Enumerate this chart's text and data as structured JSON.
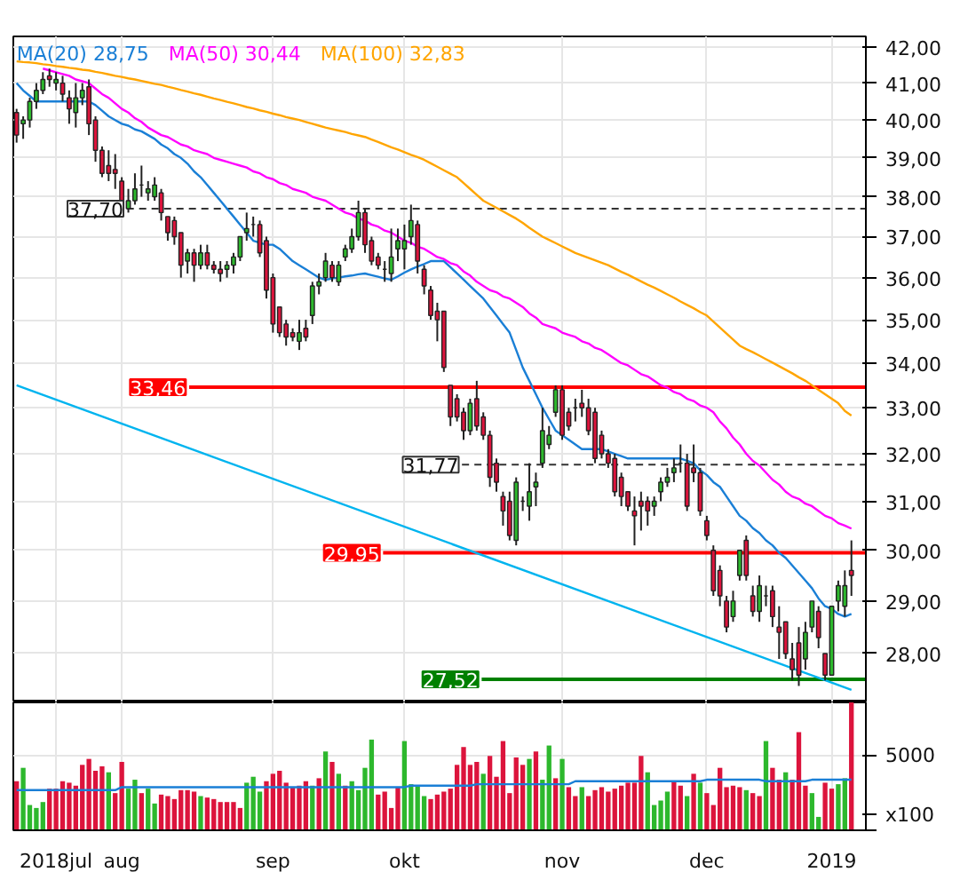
{
  "chart_data": [
    {
      "type": "candlestick",
      "log": true,
      "grid": true,
      "legend": "top left",
      "tick_labels": "y",
      "categories": [
        null,
        null,
        null,
        null,
        null,
        null,
        null,
        null,
        null,
        null,
        null,
        null,
        null,
        null,
        null,
        null,
        null,
        null,
        null,
        null,
        null,
        null,
        null,
        null,
        null,
        null,
        null,
        null,
        null,
        null,
        null,
        null,
        null,
        null,
        null,
        null,
        null,
        null,
        null,
        null,
        null,
        null,
        null,
        null,
        null,
        null,
        null,
        null,
        null,
        null,
        null,
        null,
        null,
        null,
        null,
        null,
        null,
        null,
        null,
        null,
        null,
        null,
        null,
        null,
        null,
        null,
        null,
        null,
        null,
        null,
        null,
        null,
        null,
        null,
        null,
        null,
        null,
        null,
        null,
        null,
        null,
        null,
        null,
        null,
        null,
        null,
        null,
        null,
        null,
        null,
        null,
        null,
        null,
        null,
        null,
        null,
        null,
        null,
        null,
        null,
        null,
        null,
        null,
        null,
        null,
        null,
        null,
        null,
        null,
        null,
        null,
        null,
        null,
        null,
        null,
        null,
        null,
        null,
        null,
        null,
        null,
        null,
        null,
        null,
        null,
        null,
        null,
        null
      ],
      "ohlc": [
        [
          40.2,
          40.3,
          39.4,
          39.6
        ],
        [
          39.9,
          40.1,
          39.5,
          40.0
        ],
        [
          40.0,
          40.6,
          39.8,
          40.5
        ],
        [
          40.5,
          41.0,
          40.3,
          40.8
        ],
        [
          40.8,
          41.3,
          40.7,
          41.1
        ],
        [
          41.2,
          41.4,
          40.9,
          41.1
        ],
        [
          41.0,
          41.3,
          40.8,
          41.1
        ],
        [
          41.0,
          41.2,
          40.5,
          40.7
        ],
        [
          40.6,
          40.8,
          39.9,
          40.3
        ],
        [
          40.2,
          41.0,
          39.8,
          40.6
        ],
        [
          40.6,
          41.0,
          40.4,
          40.8
        ],
        [
          40.9,
          41.1,
          39.6,
          39.9
        ],
        [
          40.0,
          40.1,
          38.9,
          39.2
        ],
        [
          39.2,
          39.3,
          38.5,
          38.6
        ],
        [
          38.8,
          39.2,
          38.4,
          38.6
        ],
        [
          38.7,
          39.1,
          38.2,
          38.6
        ],
        [
          38.4,
          38.5,
          37.5,
          37.7
        ],
        [
          37.7,
          38.2,
          37.6,
          37.9
        ],
        [
          37.9,
          38.6,
          37.8,
          38.2
        ],
        [
          38.3,
          38.8,
          38.0,
          38.3
        ],
        [
          38.1,
          38.4,
          37.9,
          38.2
        ],
        [
          38.0,
          38.5,
          37.9,
          38.3
        ],
        [
          38.1,
          38.2,
          37.4,
          37.6
        ],
        [
          37.5,
          37.5,
          36.9,
          37.1
        ],
        [
          37.4,
          37.5,
          36.8,
          37.0
        ],
        [
          37.1,
          37.1,
          36.0,
          36.3
        ],
        [
          36.4,
          36.7,
          36.1,
          36.6
        ],
        [
          36.6,
          36.7,
          35.9,
          36.3
        ],
        [
          36.3,
          36.8,
          36.2,
          36.6
        ],
        [
          36.6,
          36.8,
          36.2,
          36.3
        ],
        [
          36.3,
          36.4,
          36.1,
          36.2
        ],
        [
          36.2,
          36.4,
          35.9,
          36.1
        ],
        [
          36.2,
          36.4,
          36.0,
          36.3
        ],
        [
          36.3,
          36.6,
          36.1,
          36.5
        ],
        [
          36.5,
          37.0,
          36.4,
          37.0
        ],
        [
          37.1,
          37.6,
          36.9,
          37.2
        ],
        [
          37.3,
          37.5,
          37.0,
          37.3
        ],
        [
          37.3,
          37.4,
          36.5,
          36.6
        ],
        [
          36.9,
          37.0,
          35.5,
          35.7
        ],
        [
          36.0,
          36.1,
          34.7,
          34.9
        ],
        [
          35.3,
          35.3,
          34.6,
          34.7
        ],
        [
          34.9,
          35.0,
          34.4,
          34.6
        ],
        [
          34.7,
          34.8,
          34.5,
          34.6
        ],
        [
          34.5,
          35.0,
          34.3,
          34.7
        ],
        [
          34.8,
          35.0,
          34.5,
          34.6
        ],
        [
          35.1,
          35.9,
          34.9,
          35.8
        ],
        [
          35.8,
          36.1,
          35.6,
          35.9
        ],
        [
          36.0,
          36.6,
          35.9,
          36.4
        ],
        [
          36.3,
          36.4,
          35.9,
          36.0
        ],
        [
          35.9,
          36.4,
          35.8,
          36.3
        ],
        [
          36.5,
          36.8,
          36.4,
          36.7
        ],
        [
          36.7,
          37.2,
          36.6,
          37.0
        ],
        [
          37.0,
          37.9,
          36.9,
          37.6
        ],
        [
          37.6,
          37.7,
          36.6,
          36.8
        ],
        [
          36.9,
          37.0,
          36.3,
          36.4
        ],
        [
          36.5,
          36.6,
          36.2,
          36.3
        ],
        [
          36.2,
          36.4,
          35.9,
          36.2
        ],
        [
          36.1,
          37.2,
          35.9,
          36.5
        ],
        [
          36.7,
          37.2,
          36.4,
          36.9
        ],
        [
          36.7,
          37.3,
          36.2,
          36.9
        ],
        [
          37.0,
          37.8,
          36.8,
          37.4
        ],
        [
          37.3,
          37.4,
          36.1,
          36.4
        ],
        [
          36.2,
          36.3,
          35.6,
          35.8
        ],
        [
          35.7,
          35.8,
          35.0,
          35.1
        ],
        [
          35.2,
          35.4,
          34.5,
          35.0
        ],
        [
          35.2,
          35.2,
          33.8,
          33.9
        ],
        [
          33.5,
          33.5,
          32.6,
          32.8
        ],
        [
          33.2,
          33.3,
          32.7,
          32.8
        ],
        [
          32.9,
          33.0,
          32.3,
          32.5
        ],
        [
          32.5,
          33.2,
          32.4,
          33.1
        ],
        [
          33.2,
          33.6,
          32.5,
          32.6
        ],
        [
          32.8,
          32.9,
          32.3,
          32.4
        ],
        [
          32.4,
          32.5,
          31.3,
          31.5
        ],
        [
          31.8,
          31.9,
          31.2,
          31.4
        ],
        [
          31.1,
          31.2,
          30.5,
          30.8
        ],
        [
          31.0,
          31.2,
          30.2,
          30.3
        ],
        [
          30.2,
          31.5,
          30.1,
          31.4
        ],
        [
          31.0,
          31.1,
          30.8,
          31.0
        ],
        [
          30.9,
          31.8,
          30.6,
          31.2
        ],
        [
          31.3,
          31.6,
          30.9,
          31.4
        ],
        [
          31.8,
          33.0,
          31.7,
          32.5
        ],
        [
          32.2,
          32.6,
          32.1,
          32.4
        ],
        [
          32.9,
          33.5,
          32.8,
          33.4
        ],
        [
          33.4,
          33.5,
          32.3,
          32.4
        ],
        [
          32.9,
          33.0,
          32.5,
          32.6
        ],
        [
          33.0,
          33.2,
          32.7,
          33.0
        ],
        [
          33.1,
          33.4,
          32.8,
          33.0
        ],
        [
          33.0,
          33.2,
          32.4,
          32.5
        ],
        [
          32.9,
          33.0,
          31.8,
          31.9
        ],
        [
          32.4,
          32.5,
          31.9,
          32.0
        ],
        [
          32.0,
          32.1,
          31.7,
          31.8
        ],
        [
          31.9,
          32.0,
          31.1,
          31.2
        ],
        [
          31.5,
          31.6,
          30.9,
          31.1
        ],
        [
          31.2,
          31.2,
          30.8,
          30.9
        ],
        [
          30.8,
          31.1,
          30.1,
          30.7
        ],
        [
          31.0,
          31.2,
          30.4,
          30.9
        ],
        [
          31.0,
          31.1,
          30.5,
          30.8
        ],
        [
          30.9,
          31.1,
          30.7,
          31.0
        ],
        [
          31.2,
          31.5,
          31.0,
          31.4
        ],
        [
          31.4,
          31.7,
          31.3,
          31.5
        ],
        [
          31.6,
          31.9,
          31.4,
          31.7
        ],
        [
          31.8,
          32.2,
          31.6,
          31.8
        ],
        [
          31.8,
          32.0,
          30.8,
          30.9
        ],
        [
          31.7,
          32.2,
          31.4,
          31.6
        ],
        [
          31.6,
          31.7,
          30.7,
          30.8
        ],
        [
          30.6,
          30.7,
          30.2,
          30.3
        ],
        [
          30.0,
          30.1,
          29.1,
          29.2
        ],
        [
          29.6,
          29.7,
          28.9,
          29.1
        ],
        [
          29.0,
          29.1,
          28.4,
          28.5
        ],
        [
          28.7,
          29.2,
          28.6,
          29.0
        ],
        [
          29.5,
          30.0,
          29.4,
          30.0
        ],
        [
          30.2,
          30.3,
          29.4,
          29.5
        ],
        [
          29.1,
          29.3,
          28.7,
          28.8
        ],
        [
          28.8,
          29.5,
          28.6,
          29.3
        ],
        [
          29.1,
          29.3,
          28.9,
          29.1
        ],
        [
          29.2,
          29.3,
          28.5,
          28.7
        ],
        [
          28.5,
          28.9,
          27.9,
          28.4
        ],
        [
          28.6,
          28.6,
          27.9,
          28.0
        ],
        [
          27.9,
          28.2,
          27.5,
          27.7
        ],
        [
          28.2,
          28.5,
          27.4,
          27.6
        ],
        [
          27.9,
          28.6,
          27.7,
          28.4
        ],
        [
          28.5,
          29.0,
          28.4,
          29.0
        ],
        [
          28.8,
          28.9,
          28.1,
          28.3
        ],
        [
          28.0,
          28.0,
          27.5,
          27.6
        ],
        [
          27.6,
          28.9,
          27.6,
          28.9
        ],
        [
          29.0,
          29.4,
          28.8,
          29.3
        ],
        [
          28.9,
          29.6,
          28.7,
          29.3
        ],
        [
          29.6,
          30.2,
          29.1,
          29.5
        ]
      ],
      "series": [
        {
          "type": "line",
          "name": "MA(20) 28,75",
          "color": "#1a7fd6",
          "values": [
            41.0,
            40.8,
            40.65,
            40.5,
            40.5,
            40.5,
            40.5,
            40.5,
            40.5,
            40.5,
            40.5,
            40.5,
            40.4,
            40.25,
            40.1,
            40.0,
            39.9,
            39.85,
            39.75,
            39.7,
            39.6,
            39.5,
            39.35,
            39.25,
            39.1,
            39.0,
            38.85,
            38.65,
            38.5,
            38.3,
            38.1,
            37.9,
            37.7,
            37.5,
            37.3,
            37.1,
            36.9,
            36.85,
            36.8,
            36.8,
            36.7,
            36.55,
            36.4,
            36.3,
            36.2,
            36.1,
            36.0,
            35.95,
            35.98,
            36.0,
            36.03,
            36.05,
            36.08,
            36.1,
            36.06,
            36.02,
            35.98,
            35.95,
            36.03,
            36.12,
            36.2,
            36.27,
            36.33,
            36.4,
            36.4,
            36.4,
            36.25,
            36.1,
            35.95,
            35.8,
            35.65,
            35.5,
            35.3,
            35.1,
            34.9,
            34.7,
            34.3,
            33.9,
            33.6,
            33.3,
            33.0,
            32.75,
            32.5,
            32.4,
            32.3,
            32.2,
            32.1,
            32.1,
            32.1,
            32.1,
            32.05,
            32.0,
            31.95,
            31.9,
            31.9,
            31.9,
            31.9,
            31.9,
            31.9,
            31.9,
            31.9,
            31.9,
            31.85,
            31.8,
            31.65,
            31.55,
            31.4,
            31.3,
            31.1,
            30.9,
            30.7,
            30.6,
            30.45,
            30.35,
            30.2,
            30.1,
            29.95,
            29.85,
            29.7,
            29.55,
            29.4,
            29.25,
            29.05,
            28.9,
            28.85,
            28.75,
            28.7,
            28.75
          ]
        },
        {
          "type": "line",
          "name": "MA(50) 30,44",
          "color": "#ff00ff",
          "values": [
            null,
            null,
            null,
            null,
            41.4,
            41.35,
            41.3,
            41.25,
            41.2,
            41.1,
            41.05,
            41.0,
            40.85,
            40.7,
            40.6,
            40.45,
            40.3,
            40.2,
            40.05,
            39.95,
            39.8,
            39.7,
            39.6,
            39.55,
            39.45,
            39.35,
            39.3,
            39.2,
            39.15,
            39.1,
            39.0,
            38.95,
            38.9,
            38.85,
            38.8,
            38.75,
            38.65,
            38.6,
            38.5,
            38.45,
            38.35,
            38.3,
            38.2,
            38.15,
            38.1,
            38.0,
            37.95,
            37.9,
            37.8,
            37.7,
            37.6,
            37.55,
            37.45,
            37.4,
            37.3,
            37.25,
            37.15,
            37.1,
            37.0,
            36.9,
            36.85,
            36.75,
            36.7,
            36.6,
            36.5,
            36.45,
            36.35,
            36.3,
            36.15,
            36.05,
            35.9,
            35.8,
            35.7,
            35.65,
            35.55,
            35.5,
            35.4,
            35.3,
            35.15,
            35.05,
            34.9,
            34.85,
            34.8,
            34.7,
            34.65,
            34.6,
            34.5,
            34.45,
            34.35,
            34.3,
            34.2,
            34.1,
            34.0,
            33.95,
            33.85,
            33.75,
            33.7,
            33.6,
            33.5,
            33.45,
            33.35,
            33.3,
            33.2,
            33.15,
            33.05,
            33.0,
            32.9,
            32.7,
            32.55,
            32.35,
            32.2,
            32.0,
            31.85,
            31.75,
            31.6,
            31.45,
            31.35,
            31.2,
            31.1,
            31.05,
            30.95,
            30.9,
            30.8,
            30.7,
            30.65,
            30.55,
            30.5,
            30.44
          ]
        },
        {
          "type": "line",
          "name": "MA(100) 32,83",
          "color": "#ffa500",
          "values": [
            41.6,
            41.58,
            41.57,
            41.55,
            41.52,
            41.5,
            41.47,
            41.45,
            41.42,
            41.4,
            41.37,
            41.35,
            41.31,
            41.28,
            41.24,
            41.2,
            41.17,
            41.13,
            41.1,
            41.06,
            41.02,
            40.98,
            40.95,
            40.9,
            40.86,
            40.81,
            40.77,
            40.72,
            40.68,
            40.63,
            40.58,
            40.54,
            40.49,
            40.45,
            40.4,
            40.35,
            40.31,
            40.26,
            40.22,
            40.17,
            40.13,
            40.08,
            40.04,
            40.0,
            39.95,
            39.9,
            39.85,
            39.8,
            39.76,
            39.72,
            39.68,
            39.63,
            39.59,
            39.55,
            39.48,
            39.42,
            39.35,
            39.28,
            39.22,
            39.15,
            39.08,
            39.02,
            38.95,
            38.86,
            38.77,
            38.68,
            38.59,
            38.5,
            38.35,
            38.2,
            38.05,
            37.9,
            37.81,
            37.72,
            37.63,
            37.54,
            37.45,
            37.34,
            37.22,
            37.11,
            37.0,
            36.92,
            36.84,
            36.76,
            36.68,
            36.6,
            36.54,
            36.48,
            36.42,
            36.36,
            36.3,
            36.22,
            36.14,
            36.07,
            35.99,
            35.91,
            35.83,
            35.76,
            35.68,
            35.6,
            35.52,
            35.43,
            35.35,
            35.27,
            35.18,
            35.1,
            34.96,
            34.82,
            34.68,
            34.54,
            34.4,
            34.32,
            34.25,
            34.17,
            34.09,
            34.01,
            33.93,
            33.85,
            33.77,
            33.68,
            33.6,
            33.5,
            33.4,
            33.3,
            33.2,
            33.1,
            32.93,
            32.83
          ]
        },
        {
          "type": "line",
          "color": "#00b4ef",
          "values": [
            33.5,
            null,
            null,
            null,
            null,
            null,
            null,
            null,
            null,
            null,
            null,
            null,
            null,
            null,
            null,
            null,
            null,
            null,
            null,
            null,
            null,
            null,
            null,
            null,
            null,
            null,
            null,
            null,
            null,
            null,
            null,
            null,
            null,
            null,
            null,
            null,
            null,
            null,
            null,
            null,
            null,
            null,
            null,
            null,
            null,
            null,
            null,
            null,
            null,
            null,
            null,
            null,
            null,
            null,
            null,
            null,
            null,
            null,
            null,
            null,
            null,
            null,
            null,
            null,
            null,
            null,
            null,
            null,
            null,
            null,
            null,
            null,
            null,
            null,
            null,
            null,
            null,
            null,
            null,
            null,
            null,
            null,
            null,
            null,
            null,
            null,
            null,
            null,
            null,
            null,
            null,
            null,
            null,
            null,
            null,
            null,
            null,
            null,
            null,
            null,
            null,
            null,
            null,
            null,
            null,
            null,
            null,
            null,
            null,
            null,
            null,
            null,
            null,
            null,
            null,
            null,
            null,
            null,
            null,
            null,
            null,
            null,
            null,
            null,
            null,
            null,
            null,
            27.33
          ]
        }
      ],
      "ref_lines": [
        {
          "axis": "y",
          "value": 37.7,
          "label": "37,70",
          "color": "#333333",
          "line_style": "dashed"
        },
        {
          "axis": "y",
          "value": 33.46,
          "label": "33,46",
          "color": "#ff0000",
          "line_style": "solid"
        },
        {
          "axis": "y",
          "value": 31.77,
          "label": "31,77",
          "color": "#333333",
          "line_style": "dashed"
        },
        {
          "axis": "y",
          "value": 29.95,
          "label": "29,95",
          "color": "#ff0000",
          "line_style": "solid"
        },
        {
          "axis": "y",
          "value": 27.52,
          "label": "27,52",
          "color": "#008000",
          "line_style": "solid"
        }
      ],
      "ylim": [
        27.1,
        42.3
      ],
      "yticks": [
        {
          "value": 28,
          "label": "28,00"
        },
        {
          "value": 29,
          "label": "29,00"
        },
        {
          "value": 30,
          "label": "30,00"
        },
        {
          "value": 31,
          "label": "31,00"
        },
        {
          "value": 32,
          "label": "32,00"
        },
        {
          "value": 33,
          "label": "33,00"
        },
        {
          "value": 34,
          "label": "34,00"
        },
        {
          "value": 35,
          "label": "35,00"
        },
        {
          "value": 36,
          "label": "36,00"
        },
        {
          "value": 37,
          "label": "37,00"
        },
        {
          "value": 38,
          "label": "38,00"
        },
        {
          "value": 39,
          "label": "39,00"
        },
        {
          "value": 40,
          "label": "40,00"
        },
        {
          "value": 41,
          "label": "41,00"
        },
        {
          "value": 42,
          "label": "42,00"
        }
      ]
    },
    {
      "type": "bar",
      "grid": true,
      "categories": [
        null,
        null,
        null,
        null,
        null,
        null,
        "2018jul",
        null,
        null,
        null,
        null,
        null,
        null,
        null,
        null,
        null,
        "aug",
        null,
        null,
        null,
        null,
        null,
        null,
        null,
        null,
        null,
        null,
        null,
        null,
        null,
        null,
        null,
        null,
        null,
        null,
        null,
        null,
        null,
        null,
        "sep",
        null,
        null,
        null,
        null,
        null,
        null,
        null,
        null,
        null,
        null,
        null,
        null,
        null,
        null,
        null,
        null,
        null,
        null,
        null,
        "okt",
        null,
        null,
        null,
        null,
        null,
        null,
        null,
        null,
        null,
        null,
        null,
        null,
        null,
        null,
        null,
        null,
        null,
        null,
        null,
        null,
        null,
        null,
        null,
        "nov",
        null,
        null,
        null,
        null,
        null,
        null,
        null,
        null,
        null,
        null,
        null,
        null,
        null,
        null,
        null,
        null,
        null,
        null,
        null,
        null,
        null,
        "dec",
        null,
        null,
        null,
        null,
        null,
        null,
        null,
        null,
        null,
        null,
        null,
        null,
        null,
        null,
        null,
        null,
        null,
        null,
        "2019",
        null,
        null,
        null
      ],
      "series": [
        {
          "type": "bar",
          "values": [
            3300,
            4200,
            1700,
            1500,
            1900,
            2800,
            2800,
            3300,
            3200,
            3000,
            4400,
            4800,
            4000,
            4300,
            3900,
            2500,
            4600,
            2800,
            3400,
            2500,
            2800,
            1800,
            2400,
            2300,
            2100,
            2700,
            2700,
            2600,
            2300,
            2200,
            2100,
            1900,
            1900,
            1900,
            1500,
            3200,
            3600,
            2600,
            3300,
            3800,
            4000,
            3200,
            2900,
            3000,
            3300,
            3000,
            3500,
            5300,
            4600,
            3800,
            3000,
            3300,
            2700,
            4200,
            6100,
            2400,
            2600,
            1500,
            2900,
            6000,
            3100,
            3000,
            2300,
            2100,
            2400,
            2600,
            2800,
            4400,
            5600,
            4400,
            4600,
            3800,
            5000,
            3600,
            6000,
            2500,
            4900,
            4400,
            4800,
            5300,
            3400,
            5700,
            3500,
            4800,
            2900,
            2300,
            2900,
            2300,
            2700,
            2900,
            2600,
            2800,
            3000,
            3200,
            3200,
            5000,
            3900,
            1700,
            2000,
            2600,
            3300,
            3000,
            2300,
            3800,
            3200,
            2500,
            1700,
            4200,
            2900,
            3000,
            2900,
            2700,
            2500,
            2300,
            6000,
            4200,
            3400,
            3900,
            3400,
            6600,
            3000,
            2500,
            900,
            3200,
            2800,
            3100,
            3500,
            8600
          ],
          "colors": [
            "#dc143c",
            "#2db82d",
            "#2db82d",
            "#2db82d",
            "#2db82d",
            "#dc143c",
            "#dc143c",
            "#dc143c",
            "#dc143c",
            "#dc143c",
            "#dc143c",
            "#dc143c",
            "#dc143c",
            "#dc143c",
            "#2db82d",
            "#dc143c",
            "#dc143c",
            "#2db82d",
            "#2db82d",
            "#dc143c",
            "#2db82d",
            "#2db82d",
            "#dc143c",
            "#dc143c",
            "#dc143c",
            "#dc143c",
            "#dc143c",
            "#dc143c",
            "#2db82d",
            "#dc143c",
            "#dc143c",
            "#dc143c",
            "#dc143c",
            "#dc143c",
            "#dc143c",
            "#2db82d",
            "#2db82d",
            "#2db82d",
            "#dc143c",
            "#dc143c",
            "#dc143c",
            "#dc143c",
            "#dc143c",
            "#dc143c",
            "#dc143c",
            "#2db82d",
            "#dc143c",
            "#2db82d",
            "#dc143c",
            "#2db82d",
            "#dc143c",
            "#2db82d",
            "#2db82d",
            "#2db82d",
            "#2db82d",
            "#dc143c",
            "#dc143c",
            "#dc143c",
            "#dc143c",
            "#2db82d",
            "#2db82d",
            "#2db82d",
            "#2db82d",
            "#dc143c",
            "#dc143c",
            "#dc143c",
            "#dc143c",
            "#dc143c",
            "#dc143c",
            "#dc143c",
            "#dc143c",
            "#2db82d",
            "#dc143c",
            "#dc143c",
            "#dc143c",
            "#dc143c",
            "#dc143c",
            "#dc143c",
            "#2db82d",
            "#dc143c",
            "#2db82d",
            "#2db82d",
            "#dc143c",
            "#2db82d",
            "#dc143c",
            "#dc143c",
            "#2db82d",
            "#dc143c",
            "#dc143c",
            "#dc143c",
            "#dc143c",
            "#dc143c",
            "#dc143c",
            "#dc143c",
            "#dc143c",
            "#dc143c",
            "#2db82d",
            "#2db82d",
            "#2db82d",
            "#2db82d",
            "#dc143c",
            "#dc143c",
            "#2db82d",
            "#dc143c",
            "#2db82d",
            "#dc143c",
            "#dc143c",
            "#dc143c",
            "#dc143c",
            "#dc143c",
            "#dc143c",
            "#2db82d",
            "#dc143c",
            "#dc143c",
            "#2db82d",
            "#dc143c",
            "#dc143c",
            "#2db82d",
            "#dc143c",
            "#dc143c",
            "#dc143c",
            "#2db82d",
            "#2db82d",
            "#dc143c",
            "#dc143c",
            "#2db82d",
            "#2db82d",
            "#dc143c"
          ]
        },
        {
          "type": "line",
          "color": "#1a7fd6",
          "values": [
            2700,
            2700,
            2700,
            2700,
            2700,
            2700,
            2700,
            2700,
            2700,
            2700,
            2700,
            2700,
            2700,
            2700,
            2700,
            2700,
            2900,
            2900,
            2900,
            2900,
            2900,
            2900,
            2900,
            2900,
            2900,
            2900,
            2900,
            2900,
            2900,
            2900,
            2900,
            2900,
            2900,
            2900,
            2900,
            2900,
            2900,
            2900,
            2900,
            2900,
            2900,
            2900,
            2900,
            2900,
            2900,
            2900,
            2900,
            2900,
            2900,
            2900,
            2900,
            2900,
            2900,
            2900,
            2900,
            2900,
            2900,
            2900,
            2900,
            2900,
            3000,
            3000,
            3000,
            3000,
            3000,
            3000,
            3000,
            3000,
            3000,
            3000,
            3100,
            3100,
            3100,
            3100,
            3100,
            3100,
            3100,
            3100,
            3100,
            3100,
            3100,
            3100,
            3100,
            3100,
            3100,
            3300,
            3300,
            3300,
            3300,
            3300,
            3300,
            3300,
            3300,
            3300,
            3300,
            3300,
            3300,
            3300,
            3300,
            3300,
            3300,
            3300,
            3300,
            3300,
            3300,
            3400,
            3400,
            3400,
            3400,
            3400,
            3400,
            3400,
            3400,
            3400,
            3300,
            3300,
            3300,
            3300,
            3300,
            3300,
            3300,
            3400,
            3400,
            3400,
            3400,
            3400,
            3400,
            3400
          ]
        }
      ],
      "ylim": [
        0,
        8600
      ],
      "yticks": [
        {
          "value": 0,
          "label": null
        },
        5000
      ],
      "annotations": [
        "x100"
      ]
    }
  ]
}
